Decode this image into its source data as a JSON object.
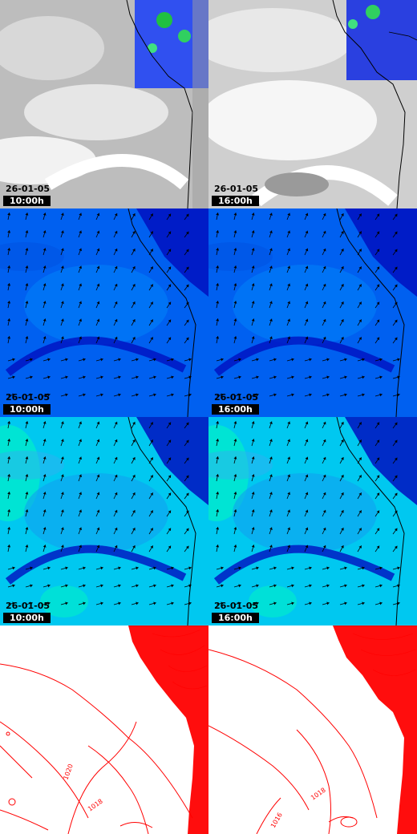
{
  "rows": [
    {
      "id": "satellite",
      "panels": [
        {
          "date": "26-01-05",
          "time": "10:00h"
        },
        {
          "date": "26-01-05",
          "time": "16:00h"
        }
      ]
    },
    {
      "id": "wind-1",
      "panels": [
        {
          "date": "26-01-05",
          "time": "10:00h"
        },
        {
          "date": "26-01-05",
          "time": "16:00h"
        }
      ]
    },
    {
      "id": "wind-2",
      "panels": [
        {
          "date": "26-01-05",
          "time": "10:00h"
        },
        {
          "date": "26-01-05",
          "time": "16:00h"
        }
      ]
    },
    {
      "id": "pressure",
      "panels": [
        {
          "isobars": [
            "1020",
            "1018"
          ]
        },
        {
          "isobars": [
            "1018",
            "1016"
          ]
        }
      ]
    }
  ],
  "colors": {
    "coast": "#000000",
    "isobar": "#ff0000",
    "cloud": "#c8c8c8",
    "wind_dark": "#0010c0",
    "wind_mid": "#0060f0",
    "wind_light": "#00c8f0",
    "wind_cyan": "#00f0c8"
  }
}
